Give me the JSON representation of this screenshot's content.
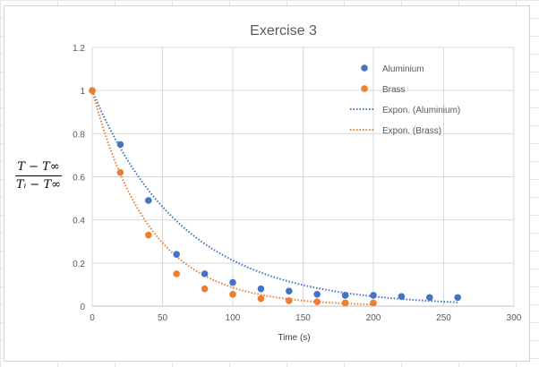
{
  "chart_data": {
    "type": "scatter",
    "title": "Exercise 3",
    "xlabel": "Time (s)",
    "ylabel": {
      "numerator": "T − T∞",
      "denominator": "Tᵢ − T∞"
    },
    "xlim": [
      0,
      300
    ],
    "ylim": [
      0,
      1.2
    ],
    "x_ticks": [
      "0",
      "50",
      "100",
      "150",
      "200",
      "250",
      "300"
    ],
    "y_ticks": [
      "0",
      "0.2",
      "0.4",
      "0.6",
      "0.8",
      "1",
      "1.2"
    ],
    "grid": true,
    "legend_position": "top-right",
    "series": [
      {
        "name": "Aluminium",
        "color": "#4472C4",
        "x": [
          0,
          20,
          40,
          60,
          80,
          100,
          120,
          140,
          160,
          180,
          200,
          220,
          240,
          260
        ],
        "y": [
          1.0,
          0.75,
          0.49,
          0.24,
          0.15,
          0.11,
          0.08,
          0.07,
          0.055,
          0.05,
          0.05,
          0.045,
          0.04,
          0.04
        ]
      },
      {
        "name": "Brass",
        "color": "#ED7D31",
        "x": [
          0,
          20,
          40,
          60,
          80,
          100,
          120,
          140,
          160,
          180,
          200
        ],
        "y": [
          1.0,
          0.62,
          0.33,
          0.15,
          0.08,
          0.055,
          0.035,
          0.025,
          0.02,
          0.015,
          0.015
        ]
      }
    ],
    "trendlines": [
      {
        "name": "Expon. (Aluminium)",
        "color": "#4472C4",
        "type": "exponential",
        "a": 1.0,
        "k": 0.0155,
        "x_range": [
          0,
          260
        ]
      },
      {
        "name": "Expon. (Brass)",
        "color": "#ED7D31",
        "type": "exponential",
        "a": 1.0,
        "k": 0.0245,
        "x_range": [
          0,
          200
        ]
      }
    ]
  }
}
